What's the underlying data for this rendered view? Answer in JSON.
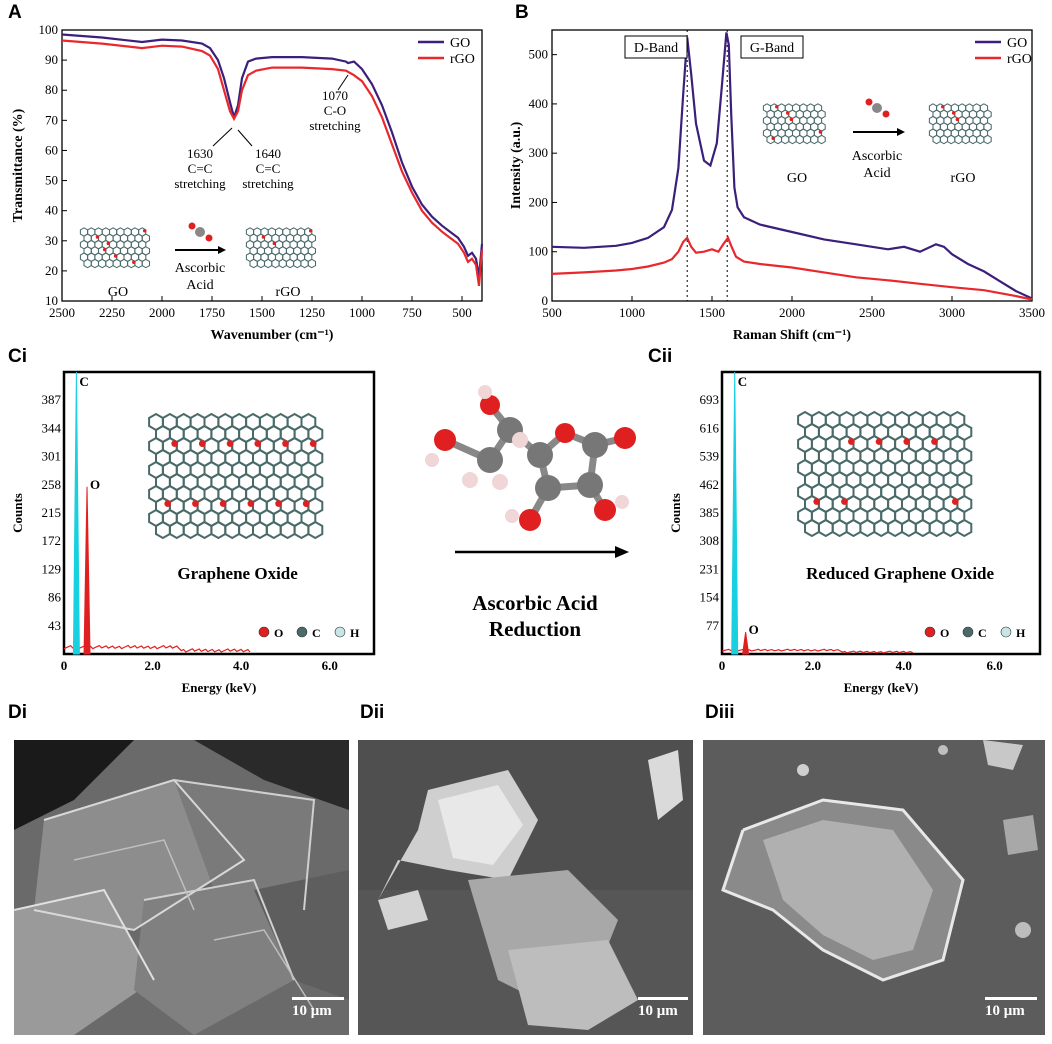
{
  "panels": {
    "A": "A",
    "B": "B",
    "Ci": "Ci",
    "Cii": "Cii",
    "Di": "Di",
    "Dii": "Dii",
    "Diii": "Diii"
  },
  "colors": {
    "go": "#3b1f7a",
    "rgo": "#e8282d",
    "cyan": "#19d0e0"
  },
  "chart_data": [
    {
      "id": "A",
      "type": "line",
      "xlabel": "Wavenumber (cm⁻¹)",
      "ylabel": "Transmittance (%)",
      "xlim": [
        2500,
        400
      ],
      "ylim": [
        10,
        100
      ],
      "xticks": [
        "2500",
        "2250",
        "2000",
        "1750",
        "1500",
        "1250",
        "1000",
        "750",
        "500"
      ],
      "yticks": [
        "10",
        "20",
        "30",
        "40",
        "50",
        "60",
        "70",
        "80",
        "90",
        "100"
      ],
      "legend": "top-right",
      "series": [
        {
          "name": "GO",
          "color": "#3b1f7a",
          "x": [
            2500,
            2300,
            2100,
            2000,
            1900,
            1800,
            1760,
            1720,
            1690,
            1660,
            1640,
            1620,
            1600,
            1570,
            1530,
            1450,
            1300,
            1150,
            1080,
            1070,
            1040,
            1000,
            950,
            900,
            850,
            800,
            750,
            700,
            650,
            600,
            560,
            520,
            490,
            470,
            450,
            430,
            415,
            400
          ],
          "y": [
            98.5,
            97.5,
            96,
            96.8,
            96.5,
            95.5,
            94,
            90,
            84,
            76,
            71,
            75,
            84,
            89.5,
            90.5,
            91,
            91,
            90.5,
            89.5,
            89,
            89.5,
            87,
            82,
            75,
            66,
            56,
            48,
            42,
            38,
            35,
            33,
            31,
            28,
            25,
            26,
            24,
            18,
            29
          ]
        },
        {
          "name": "rGO",
          "color": "#e8282d",
          "x": [
            2500,
            2300,
            2100,
            2000,
            1900,
            1800,
            1760,
            1720,
            1690,
            1660,
            1640,
            1620,
            1600,
            1570,
            1530,
            1450,
            1300,
            1150,
            1080,
            1040,
            1000,
            950,
            900,
            850,
            800,
            750,
            700,
            650,
            600,
            560,
            520,
            490,
            470,
            450,
            430,
            415,
            400
          ],
          "y": [
            96.5,
            95.5,
            94,
            94.8,
            94.5,
            93,
            91.5,
            87,
            80,
            73,
            70.5,
            73,
            80,
            85,
            86.5,
            87.5,
            87.5,
            87,
            86.5,
            85,
            83,
            78,
            71,
            62,
            53,
            46,
            40,
            36,
            33,
            31,
            29,
            26,
            23,
            24,
            22,
            15,
            27
          ]
        }
      ],
      "annotations": [
        {
          "lines": [
            "1070",
            "C-O",
            "stretching"
          ]
        },
        {
          "lines": [
            "1630",
            "C=C",
            "stretching"
          ]
        },
        {
          "lines": [
            "1640",
            "C=C",
            "stretching"
          ]
        }
      ],
      "scheme": {
        "from": "GO",
        "to": "rGO",
        "reagent": [
          "Ascorbic",
          "Acid"
        ]
      }
    },
    {
      "id": "B",
      "type": "line",
      "xlabel": "Raman Shift (cm⁻¹)",
      "ylabel": "Intensity (a.u.)",
      "xlim": [
        500,
        3500
      ],
      "ylim": [
        0,
        550
      ],
      "xticks": [
        "500",
        "1000",
        "1500",
        "2000",
        "2500",
        "3000",
        "3500"
      ],
      "yticks": [
        "0",
        "100",
        "200",
        "300",
        "400",
        "500"
      ],
      "legend": "top-right",
      "series": [
        {
          "name": "GO",
          "color": "#3b1f7a",
          "x": [
            500,
            700,
            900,
            1000,
            1100,
            1200,
            1250,
            1290,
            1320,
            1345,
            1370,
            1400,
            1450,
            1490,
            1530,
            1560,
            1590,
            1605,
            1620,
            1640,
            1660,
            1700,
            1800,
            2000,
            2200,
            2400,
            2600,
            2700,
            2800,
            2900,
            2950,
            3000,
            3100,
            3200,
            3300,
            3400,
            3500
          ],
          "y": [
            110,
            108,
            112,
            118,
            128,
            150,
            185,
            270,
            420,
            535,
            460,
            360,
            285,
            275,
            320,
            430,
            545,
            520,
            380,
            230,
            190,
            170,
            155,
            140,
            125,
            115,
            105,
            110,
            100,
            115,
            110,
            95,
            75,
            60,
            40,
            20,
            5
          ]
        },
        {
          "name": "rGO",
          "color": "#e8282d",
          "x": [
            500,
            700,
            900,
            1000,
            1100,
            1200,
            1250,
            1290,
            1320,
            1345,
            1370,
            1400,
            1450,
            1500,
            1540,
            1570,
            1600,
            1620,
            1650,
            1700,
            1800,
            2000,
            2200,
            2400,
            2600,
            2800,
            3000,
            3200,
            3400,
            3500
          ],
          "y": [
            55,
            58,
            62,
            65,
            70,
            78,
            85,
            100,
            120,
            128,
            110,
            98,
            100,
            105,
            100,
            115,
            128,
            112,
            90,
            80,
            75,
            68,
            58,
            48,
            42,
            35,
            28,
            22,
            10,
            3
          ]
        }
      ],
      "bands": [
        {
          "label": "D-Band",
          "x": 1345
        },
        {
          "label": "G-Band",
          "x": 1595
        }
      ],
      "scheme": {
        "from": "GO",
        "to": "rGO",
        "reagent": [
          "Ascorbic",
          "Acid"
        ]
      }
    },
    {
      "id": "Ci",
      "type": "line",
      "xlabel": "Energy (keV)",
      "ylabel": "Counts",
      "xlim": [
        0,
        7
      ],
      "ylim": [
        0,
        430
      ],
      "xticks": [
        "0",
        "2.0",
        "4.0",
        "6.0"
      ],
      "yticks": [
        "43",
        "86",
        "129",
        "172",
        "215",
        "258",
        "301",
        "344",
        "387"
      ],
      "peaks": [
        {
          "label": "C",
          "x": 0.28,
          "y": 430
        },
        {
          "label": "O",
          "x": 0.52,
          "y": 255
        }
      ],
      "structure_label": "Graphene Oxide",
      "legend": [
        "O",
        "C",
        "H"
      ]
    },
    {
      "id": "Cii",
      "type": "line",
      "xlabel": "Energy (keV)",
      "ylabel": "Counts",
      "xlim": [
        0,
        7
      ],
      "ylim": [
        0,
        770
      ],
      "xticks": [
        "0",
        "2.0",
        "4.0",
        "6.0"
      ],
      "yticks": [
        "77",
        "154",
        "231",
        "308",
        "385",
        "462",
        "539",
        "616",
        "693"
      ],
      "peaks": [
        {
          "label": "C",
          "x": 0.28,
          "y": 770
        },
        {
          "label": "O",
          "x": 0.52,
          "y": 60
        }
      ],
      "structure_label": "Reduced Graphene Oxide",
      "legend": [
        "O",
        "C",
        "H"
      ]
    }
  ],
  "center": {
    "reaction_label_1": "Ascorbic Acid",
    "reaction_label_2": "Reduction"
  },
  "sem": [
    {
      "scale": "10 μm"
    },
    {
      "scale": "10 μm"
    },
    {
      "scale": "10 μm"
    }
  ]
}
